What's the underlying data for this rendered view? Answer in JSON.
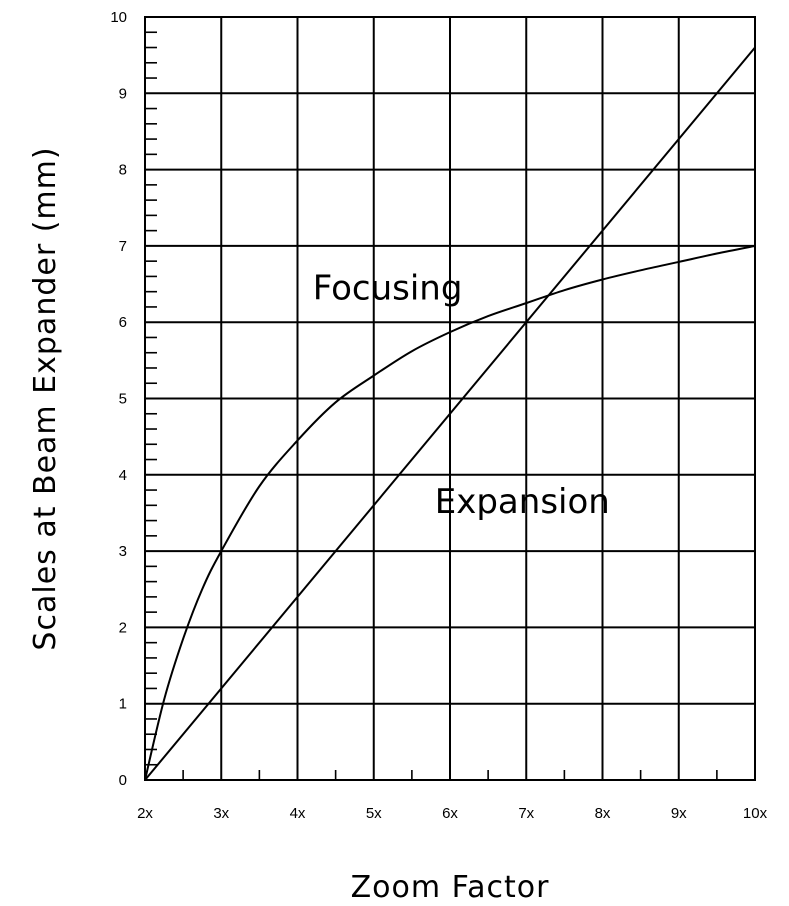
{
  "chart_data": {
    "type": "line",
    "title": "",
    "xlabel": "Zoom Factor",
    "ylabel": "Scales at Beam Expander (mm)",
    "x_ticks": [
      2,
      3,
      4,
      5,
      6,
      7,
      8,
      9,
      10
    ],
    "x_tick_labels": [
      "2x",
      "3x",
      "4x",
      "5x",
      "6x",
      "7x",
      "8x",
      "9x",
      "10x"
    ],
    "y_ticks": [
      0,
      1,
      2,
      3,
      4,
      5,
      6,
      7,
      8,
      9,
      10
    ],
    "y_tick_labels": [
      "0",
      "1",
      "2",
      "3",
      "4",
      "5",
      "6",
      "7",
      "8",
      "9",
      "10"
    ],
    "xlim": [
      2,
      10
    ],
    "ylim": [
      0,
      10
    ],
    "grid": true,
    "legend": "none",
    "series": [
      {
        "name": "Focusing",
        "x": [
          2,
          2.25,
          2.5,
          2.75,
          3,
          3.5,
          4,
          4.5,
          5,
          5.5,
          6,
          6.5,
          7,
          7.5,
          8,
          8.5,
          9,
          9.5,
          10
        ],
        "y": [
          0,
          1.05,
          1.85,
          2.5,
          3.0,
          3.85,
          4.45,
          4.95,
          5.3,
          5.62,
          5.87,
          6.08,
          6.25,
          6.42,
          6.56,
          6.68,
          6.79,
          6.9,
          7.0
        ]
      },
      {
        "name": "Expansion",
        "x": [
          2,
          10
        ],
        "y": [
          0,
          9.6
        ]
      }
    ],
    "annotations": [
      {
        "text": "Focusing",
        "x": 4.2,
        "y": 6.3
      },
      {
        "text": "Expansion",
        "x": 5.8,
        "y": 3.5
      }
    ]
  }
}
